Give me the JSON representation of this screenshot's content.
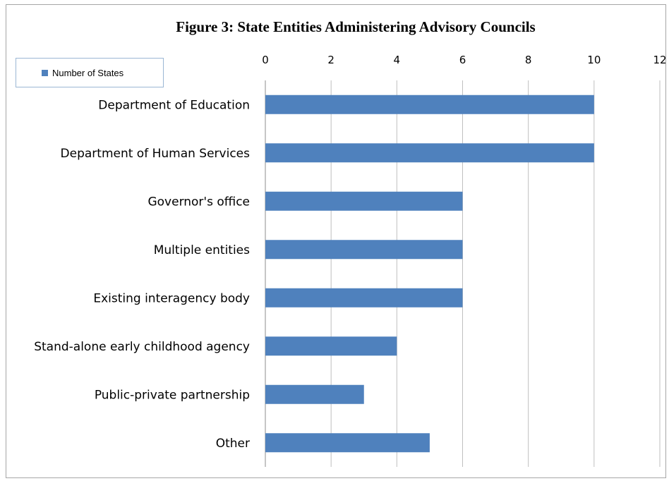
{
  "chart_data": {
    "type": "bar",
    "orientation": "horizontal",
    "title": "Figure 3: State Entities Administering  Advisory Councils",
    "categories": [
      "Department of Education",
      "Department of Human Services",
      "Governor's office",
      "Multiple entities",
      "Existing interagency body",
      "Stand-alone early childhood agency",
      "Public-private partnership",
      "Other"
    ],
    "series": [
      {
        "name": "Number of States",
        "values": [
          10,
          10,
          6,
          6,
          6,
          4,
          3,
          5
        ],
        "color": "#4f81bd"
      }
    ],
    "xlim": [
      0,
      12
    ],
    "xticks": [
      "0",
      "2",
      "4",
      "6",
      "8",
      "10",
      "12"
    ],
    "x_axis_position": "top",
    "grid": true,
    "legend": "top-left"
  }
}
